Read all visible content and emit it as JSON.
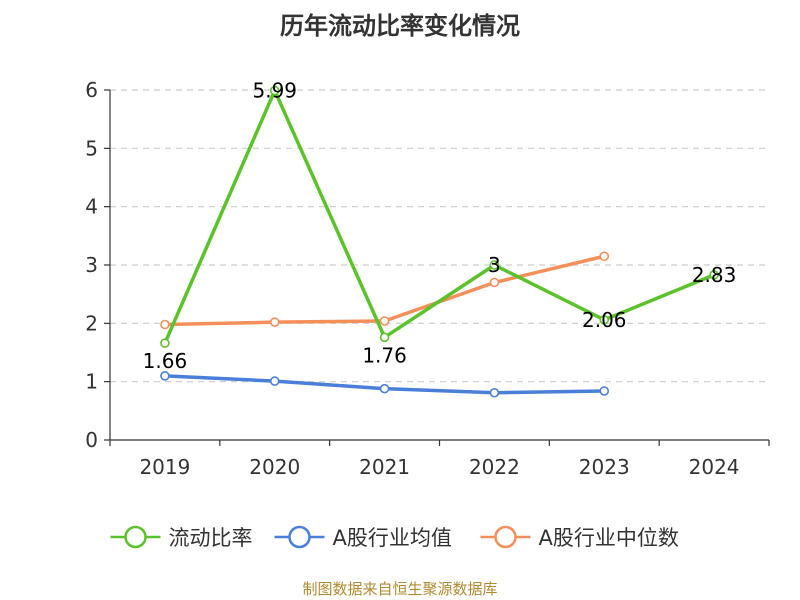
{
  "chart_data": {
    "type": "line",
    "title": "历年流动比率变化情况",
    "categories": [
      "2019",
      "2020",
      "2021",
      "2022",
      "2023",
      "2024"
    ],
    "ylim": [
      0,
      6
    ],
    "yticks": [
      0,
      1,
      2,
      3,
      4,
      5,
      6
    ],
    "grid": true,
    "legend_position": "bottom",
    "series": [
      {
        "name": "流动比率",
        "color": "#5cc22b",
        "values": [
          1.66,
          5.99,
          1.76,
          3,
          2.06,
          2.83
        ],
        "labels": [
          "1.66",
          "5.99",
          "1.76",
          "3",
          "2.06",
          "2.83"
        ]
      },
      {
        "name": "A股行业均值",
        "color": "#4a7fd9",
        "values": [
          1.1,
          1.01,
          0.88,
          0.81,
          0.84,
          null
        ]
      },
      {
        "name": "A股行业中位数",
        "color": "#f58f5a",
        "values": [
          1.98,
          2.02,
          2.04,
          2.7,
          3.15,
          null
        ]
      }
    ],
    "source": "制图数据来自恒生聚源数据库"
  }
}
